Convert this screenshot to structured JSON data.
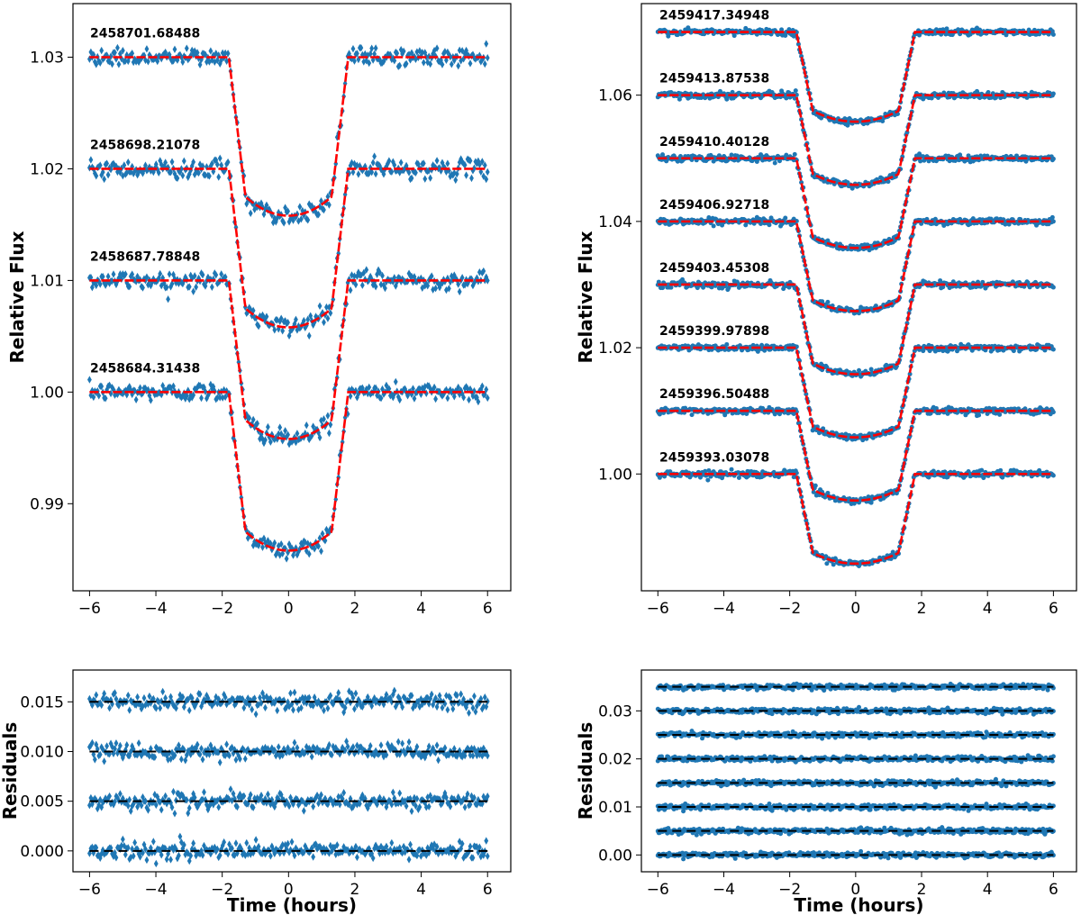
{
  "colors": {
    "points": "#1f77b4",
    "model": "#ff0000",
    "residual_zero": "#000000",
    "axes": "#000000"
  },
  "chart_data": [
    {
      "id": "top-left",
      "type": "scatter",
      "marker": "diamond",
      "marker-icon": "diamond-marker",
      "xlabel": "",
      "ylabel": "Relative Flux",
      "xlim": [
        -6.5,
        6.7
      ],
      "ylim": [
        0.9822,
        1.0348
      ],
      "xticks": [
        -6,
        -4,
        -2,
        0,
        2,
        4,
        6
      ],
      "xtick_labels": [
        "−6",
        "−4",
        "−2",
        "0",
        "2",
        "4",
        "6"
      ],
      "yticks": [
        0.99,
        1.0,
        1.01,
        1.02,
        1.03
      ],
      "ytick_labels": [
        "0.99",
        "1.00",
        "1.01",
        "1.02",
        "1.03"
      ],
      "x_range": [
        -6,
        6
      ],
      "transit": {
        "ingress_start": -1.8,
        "full_start": -1.3,
        "full_end": 1.3,
        "egress_end": 1.8,
        "depth": 0.0142
      },
      "scatter_sigma": 0.0004,
      "series": [
        {
          "name": "2458684.31438",
          "offset": 0.0
        },
        {
          "name": "2458687.78848",
          "offset": 0.01
        },
        {
          "name": "2458698.21078",
          "offset": 0.02
        },
        {
          "name": "2458701.68488",
          "offset": 0.03
        }
      ],
      "annotations": [
        "2458701.68488",
        "2458698.21078",
        "2458687.78848",
        "2458684.31438"
      ]
    },
    {
      "id": "top-right",
      "type": "scatter",
      "marker": "circle",
      "marker-icon": "dot-marker",
      "xlabel": "",
      "ylabel": "Relative Flux",
      "xlim": [
        -6.5,
        6.7
      ],
      "ylim": [
        0.9815,
        1.0745
      ],
      "xticks": [
        -6,
        -4,
        -2,
        0,
        2,
        4,
        6
      ],
      "xtick_labels": [
        "−6",
        "−4",
        "−2",
        "0",
        "2",
        "4",
        "6"
      ],
      "yticks": [
        1.0,
        1.02,
        1.04,
        1.06
      ],
      "ytick_labels": [
        "1.00",
        "1.02",
        "1.04",
        "1.06"
      ],
      "x_range": [
        -6,
        6
      ],
      "transit": {
        "ingress_start": -1.8,
        "full_start": -1.3,
        "full_end": 1.3,
        "egress_end": 1.8,
        "depth": 0.0142
      },
      "scatter_sigma": 0.00025,
      "series": [
        {
          "name": "2459393.03078",
          "offset": 0.0
        },
        {
          "name": "2459396.50488",
          "offset": 0.01
        },
        {
          "name": "2459399.97898",
          "offset": 0.02
        },
        {
          "name": "2459403.45308",
          "offset": 0.03
        },
        {
          "name": "2459406.92718",
          "offset": 0.04
        },
        {
          "name": "2459410.40128",
          "offset": 0.05
        },
        {
          "name": "2459413.87538",
          "offset": 0.06
        },
        {
          "name": "2459417.34948",
          "offset": 0.07
        }
      ],
      "annotations": [
        "2459417.34948",
        "2459413.87538",
        "2459410.40128",
        "2459406.92718",
        "2459403.45308",
        "2459399.97898",
        "2459396.50488",
        "2459393.03078"
      ]
    },
    {
      "id": "bottom-left",
      "type": "scatter",
      "marker": "diamond",
      "marker-icon": "diamond-marker",
      "xlabel": "Time (hours)",
      "ylabel": "Residuals",
      "xlim": [
        -6.5,
        6.7
      ],
      "ylim": [
        -0.0021,
        0.0182
      ],
      "xticks": [
        -6,
        -4,
        -2,
        0,
        2,
        4,
        6
      ],
      "xtick_labels": [
        "−6",
        "−4",
        "−2",
        "0",
        "2",
        "4",
        "6"
      ],
      "yticks": [
        0.0,
        0.005,
        0.01,
        0.015
      ],
      "ytick_labels": [
        "0.000",
        "0.005",
        "0.010",
        "0.015"
      ],
      "x_range": [
        -6,
        6
      ],
      "scatter_sigma": 0.0004,
      "series_offsets": [
        0.0,
        0.005,
        0.01,
        0.015
      ]
    },
    {
      "id": "bottom-right",
      "type": "scatter",
      "marker": "circle",
      "marker-icon": "dot-marker",
      "xlabel": "Time (hours)",
      "ylabel": "Residuals",
      "xlim": [
        -6.5,
        6.7
      ],
      "ylim": [
        -0.0035,
        0.0385
      ],
      "xticks": [
        -6,
        -4,
        -2,
        0,
        2,
        4,
        6
      ],
      "xtick_labels": [
        "−6",
        "−4",
        "−2",
        "0",
        "2",
        "4",
        "6"
      ],
      "yticks": [
        0.0,
        0.01,
        0.02,
        0.03
      ],
      "ytick_labels": [
        "0.00",
        "0.01",
        "0.02",
        "0.03"
      ],
      "x_range": [
        -6,
        6
      ],
      "scatter_sigma": 0.00025,
      "series_offsets": [
        0.0,
        0.005,
        0.01,
        0.015,
        0.02,
        0.025,
        0.03,
        0.035
      ]
    }
  ]
}
